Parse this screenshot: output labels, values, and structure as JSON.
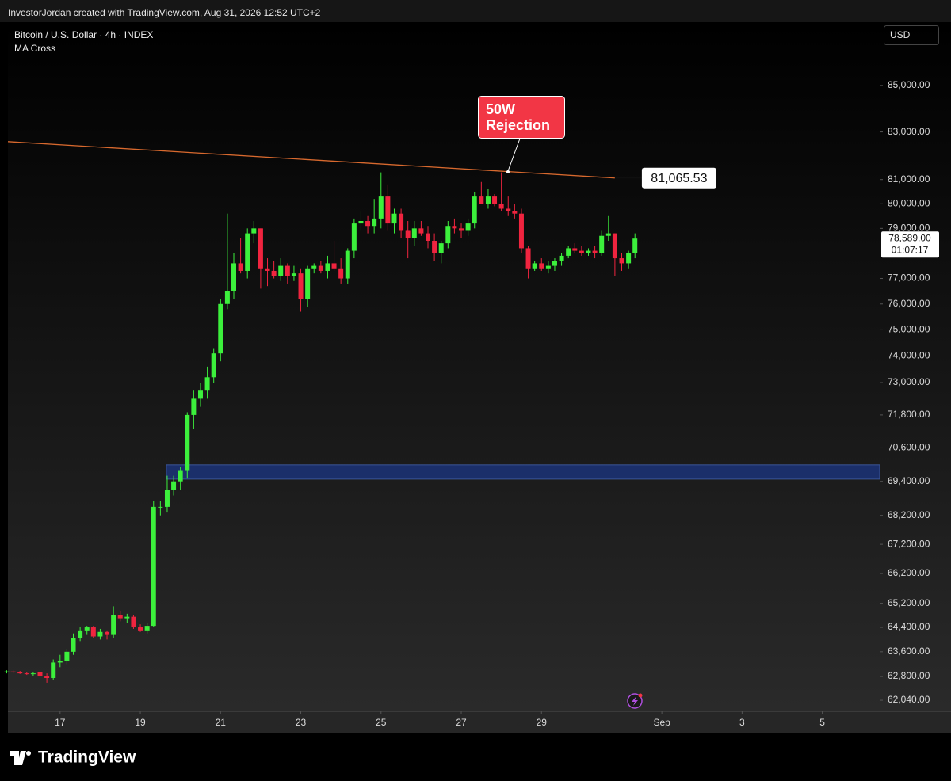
{
  "chart_data": {
    "type": "candlestick",
    "watermark": "InvestorJordan created with TradingView.com, Aug 31, 2026 12:52 UTC+2",
    "title": "Bitcoin / U.S. Dollar · 4h · INDEX",
    "indicator": "MA Cross",
    "currency": "USD",
    "brand": "TradingView",
    "log_scale": true,
    "up_color": "#3cf03c",
    "down_color": "#f0243f",
    "xlim": [
      15.7,
      37.43
    ],
    "xticks": [
      17,
      19,
      21,
      23,
      25,
      27,
      29,
      {
        "value": 32,
        "label": "Sep"
      },
      {
        "value": 34,
        "label": "3"
      },
      {
        "value": 36,
        "label": "5"
      }
    ],
    "ylim": [
      61690,
      87800
    ],
    "yticks": [
      {
        "value": 85000,
        "label": "85,000.00"
      },
      {
        "value": 83000,
        "label": "83,000.00"
      },
      {
        "value": 81000,
        "label": "81,000.00"
      },
      {
        "value": 80000,
        "label": "80,000.00"
      },
      {
        "value": 79000,
        "label": "79,000.00"
      },
      {
        "value": 77000,
        "label": "77,000.00"
      },
      {
        "value": 76000,
        "label": "76,000.00"
      },
      {
        "value": 75000,
        "label": "75,000.00"
      },
      {
        "value": 74000,
        "label": "74,000.00"
      },
      {
        "value": 73000,
        "label": "73,000.00"
      },
      {
        "value": 71800,
        "label": "71,800.00"
      },
      {
        "value": 70600,
        "label": "70,600.00"
      },
      {
        "value": 69400,
        "label": "69,400.00"
      },
      {
        "value": 68200,
        "label": "68,200.00"
      },
      {
        "value": 67200,
        "label": "67,200.00"
      },
      {
        "value": 66200,
        "label": "66,200.00"
      },
      {
        "value": 65200,
        "label": "65,200.00"
      },
      {
        "value": 64400,
        "label": "64,400.00"
      },
      {
        "value": 63600,
        "label": "63,600.00"
      },
      {
        "value": 62800,
        "label": "62,800.00"
      },
      {
        "value": 62040,
        "label": "62,040.00"
      }
    ],
    "x": [
      15.67,
      15.83,
      16,
      16.17,
      16.33,
      16.5,
      16.67,
      16.83,
      17,
      17.17,
      17.33,
      17.5,
      17.67,
      17.83,
      18,
      18.17,
      18.33,
      18.5,
      18.67,
      18.83,
      19,
      19.17,
      19.33,
      19.5,
      19.67,
      19.83,
      20,
      20.17,
      20.33,
      20.5,
      20.67,
      20.83,
      21,
      21.17,
      21.33,
      21.5,
      21.67,
      21.83,
      22,
      22.17,
      22.33,
      22.5,
      22.67,
      22.83,
      23,
      23.17,
      23.33,
      23.5,
      23.67,
      23.83,
      24,
      24.17,
      24.33,
      24.5,
      24.67,
      24.83,
      25,
      25.17,
      25.33,
      25.5,
      25.67,
      25.83,
      26,
      26.17,
      26.33,
      26.5,
      26.67,
      26.83,
      27,
      27.17,
      27.33,
      27.5,
      27.67,
      27.83,
      28,
      28.17,
      28.33,
      28.5,
      28.67,
      28.83,
      29,
      29.17,
      29.33,
      29.5,
      29.67,
      29.83,
      30,
      30.17,
      30.33,
      30.5,
      30.67,
      30.83,
      31,
      31.17,
      31.33
    ],
    "open": [
      62950,
      62960,
      62930,
      62900,
      62880,
      62950,
      62800,
      62750,
      63250,
      63300,
      63600,
      64050,
      64300,
      64400,
      64100,
      64250,
      64150,
      64800,
      64700,
      64750,
      64400,
      64300,
      64450,
      68500,
      68500,
      69100,
      69400,
      69800,
      71800,
      72400,
      72700,
      73200,
      74100,
      76000,
      76500,
      77600,
      77300,
      78800,
      79000,
      77400,
      77300,
      77100,
      77500,
      77100,
      77200,
      76200,
      77400,
      77500,
      77300,
      77600,
      77400,
      77000,
      78100,
      79200,
      79300,
      79100,
      79400,
      80300,
      79200,
      79600,
      78900,
      78600,
      79000,
      78800,
      78500,
      78000,
      78400,
      79100,
      79000,
      78900,
      79200,
      80300,
      80000,
      80300,
      80000,
      79800,
      79700,
      79600,
      78200,
      77400,
      77600,
      77400,
      77500,
      77700,
      77900,
      78200,
      78100,
      78000,
      78100,
      78000,
      78700,
      78800,
      77800,
      77600,
      78000
    ],
    "high": [
      63000,
      63000,
      62980,
      62950,
      62950,
      63150,
      62900,
      63350,
      63500,
      63700,
      64200,
      64400,
      64450,
      64450,
      64350,
      64300,
      65100,
      64950,
      64850,
      64800,
      64500,
      64550,
      68700,
      68700,
      69600,
      69600,
      69900,
      71900,
      72700,
      73000,
      73600,
      74300,
      76200,
      79600,
      78000,
      78600,
      79000,
      79300,
      79000,
      77800,
      77700,
      77800,
      77600,
      77500,
      77400,
      77500,
      77600,
      77700,
      77900,
      78500,
      77800,
      78200,
      79400,
      79700,
      79500,
      80200,
      81300,
      80800,
      79800,
      79800,
      79300,
      79300,
      79300,
      79100,
      78800,
      78500,
      79300,
      79400,
      79200,
      79400,
      80500,
      80900,
      80600,
      80400,
      81300,
      80300,
      80000,
      79800,
      78300,
      77700,
      77800,
      77700,
      77800,
      78000,
      78300,
      78400,
      78300,
      78200,
      78300,
      78900,
      79500,
      78800,
      78000,
      78100,
      78800
    ],
    "low": [
      62900,
      62900,
      62880,
      62850,
      62820,
      62650,
      62600,
      62700,
      63100,
      63200,
      63500,
      63950,
      64150,
      64050,
      64000,
      64000,
      64050,
      64600,
      64550,
      64350,
      64250,
      64200,
      64400,
      68200,
      68300,
      68900,
      69100,
      69500,
      71300,
      72100,
      72400,
      73000,
      73800,
      75800,
      76200,
      77200,
      77000,
      78400,
      76600,
      76700,
      77000,
      76900,
      76800,
      76900,
      75700,
      75900,
      77200,
      77200,
      77000,
      77300,
      76800,
      76800,
      77800,
      78900,
      78800,
      78800,
      79000,
      78900,
      78800,
      78600,
      77800,
      78300,
      78700,
      78200,
      77700,
      77600,
      78200,
      78800,
      78600,
      78700,
      79000,
      80000,
      79800,
      79900,
      79700,
      79500,
      79400,
      78000,
      77000,
      77300,
      77300,
      77200,
      77300,
      77500,
      77800,
      78000,
      77900,
      77900,
      77800,
      77900,
      78500,
      77100,
      77300,
      77400,
      77800
    ],
    "close": [
      62960,
      62930,
      62900,
      62880,
      62900,
      62800,
      62750,
      63250,
      63300,
      63600,
      64050,
      64300,
      64400,
      64100,
      64250,
      64150,
      64800,
      64700,
      64750,
      64400,
      64300,
      64450,
      68500,
      68500,
      69100,
      69400,
      69800,
      71800,
      72400,
      72700,
      73200,
      74100,
      76000,
      76500,
      77600,
      77300,
      78800,
      79000,
      77400,
      77300,
      77100,
      77500,
      77100,
      77200,
      76200,
      77400,
      77500,
      77300,
      77600,
      77400,
      77000,
      78100,
      79200,
      79300,
      79100,
      79400,
      80300,
      79200,
      79600,
      78900,
      78600,
      79000,
      78800,
      78500,
      78000,
      78400,
      79100,
      79000,
      78900,
      79200,
      80300,
      80000,
      80300,
      80000,
      79800,
      79700,
      79600,
      78200,
      77400,
      77600,
      77400,
      77500,
      77700,
      77900,
      78200,
      78100,
      78000,
      78100,
      78000,
      78700,
      78800,
      77800,
      77600,
      78000,
      78589
    ],
    "ma_line": {
      "color": "#d8692e",
      "x": [
        15.7,
        30.83
      ],
      "values": [
        82590,
        81065.53
      ],
      "end_label": "81,065.53"
    },
    "zone": {
      "low": 69480,
      "high": 69990,
      "x_start": 19.65,
      "color": "#1b2f6a"
    },
    "annotation": [
      "50W",
      "Rejection"
    ],
    "last_price": {
      "value": 78589,
      "label": "78,589.00",
      "countdown": "01:07:17"
    }
  }
}
